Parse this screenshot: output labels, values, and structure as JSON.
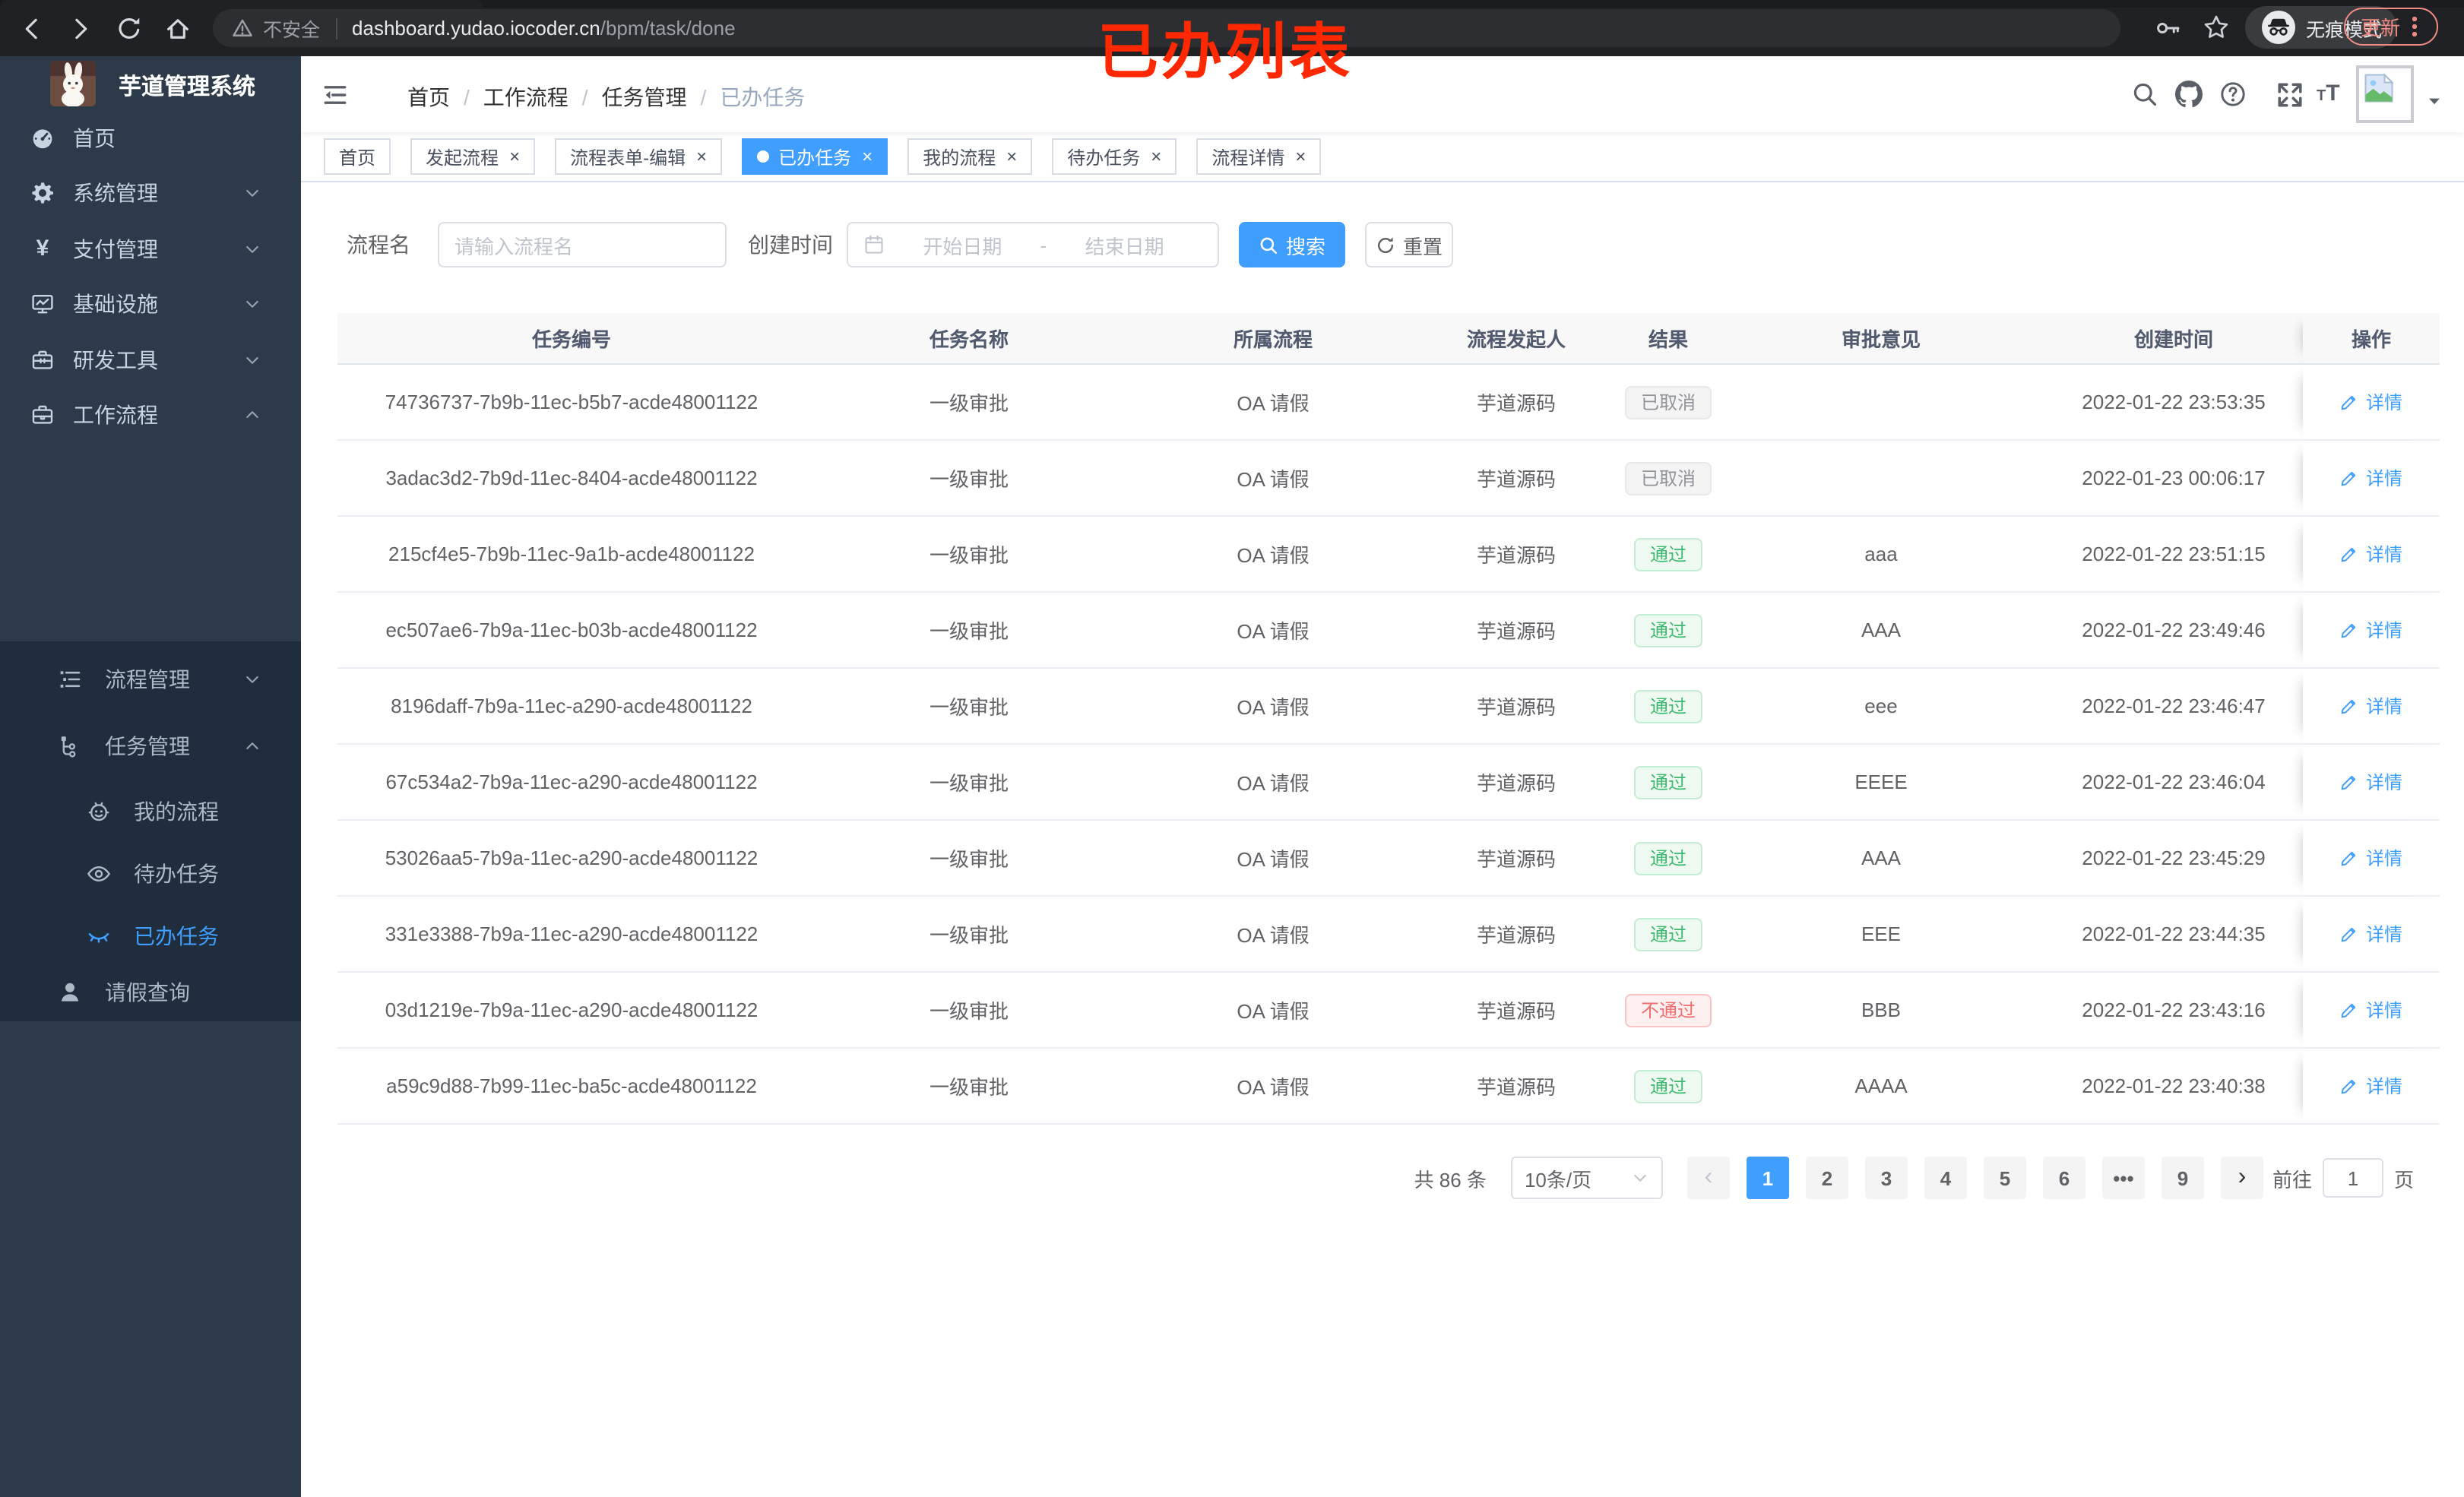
{
  "colors": {
    "accent": "#409eff",
    "annotation": "#ff2800",
    "update": "#f28b82",
    "success": "#3eb96f",
    "danger": "#f56c6c",
    "info": "#909399"
  },
  "annotation": {
    "text": "已办列表"
  },
  "browser": {
    "nav_icons": [
      "back-icon",
      "forward-icon",
      "reload-icon",
      "home-icon"
    ],
    "security_label": "不安全",
    "url_host": "dashboard.yudao.iocoder.cn",
    "url_path": "/bpm/task/done",
    "right_icons": [
      "key-icon",
      "star-icon"
    ],
    "incognito_label": "无痕模式",
    "update_label": "更新"
  },
  "sidebar": {
    "logo_icon": "rabbit-logo",
    "title": "芋道管理系统",
    "menu": [
      {
        "label": "首页",
        "icon": "dashboard-icon",
        "chevron": ""
      },
      {
        "label": "系统管理",
        "icon": "gear-icon",
        "chevron": "down"
      },
      {
        "label": "支付管理",
        "icon": "yen-icon",
        "chevron": "down"
      },
      {
        "label": "基础设施",
        "icon": "monitor-icon",
        "chevron": "down"
      },
      {
        "label": "研发工具",
        "icon": "toolbox-icon",
        "chevron": "down"
      },
      {
        "label": "工作流程",
        "icon": "briefcase-icon",
        "chevron": "up"
      }
    ],
    "submenu": [
      {
        "label": "流程管理",
        "icon": "list-tree-icon",
        "chevron": "down",
        "level": 1,
        "active": false
      },
      {
        "label": "任务管理",
        "icon": "org-icon",
        "chevron": "up",
        "level": 1,
        "active": false
      },
      {
        "label": "我的流程",
        "icon": "robot-icon",
        "chevron": "",
        "level": 2,
        "active": false
      },
      {
        "label": "待办任务",
        "icon": "eye-open-icon",
        "chevron": "",
        "level": 2,
        "active": false
      },
      {
        "label": "已办任务",
        "icon": "eye-closed-icon",
        "chevron": "",
        "level": 2,
        "active": true
      },
      {
        "label": "请假查询",
        "icon": "user-icon",
        "chevron": "",
        "level": 1,
        "active": false
      }
    ]
  },
  "navbar": {
    "breadcrumb": [
      "首页",
      "工作流程",
      "任务管理",
      "已办任务"
    ],
    "icons": [
      "search-icon",
      "github-icon",
      "question-icon",
      "fullscreen-icon",
      "font-size-icon"
    ]
  },
  "tabs": [
    {
      "label": "首页",
      "closable": false,
      "active": false
    },
    {
      "label": "发起流程",
      "closable": true,
      "active": false
    },
    {
      "label": "流程表单-编辑",
      "closable": true,
      "active": false
    },
    {
      "label": "已办任务",
      "closable": true,
      "active": true
    },
    {
      "label": "我的流程",
      "closable": true,
      "active": false
    },
    {
      "label": "待办任务",
      "closable": true,
      "active": false
    },
    {
      "label": "流程详情",
      "closable": true,
      "active": false
    }
  ],
  "filters": {
    "name_label": "流程名",
    "name_placeholder": "请输入流程名",
    "time_label": "创建时间",
    "date_start_placeholder": "开始日期",
    "date_separator": "-",
    "date_end_placeholder": "结束日期",
    "search_label": "搜索",
    "reset_label": "重置"
  },
  "table": {
    "columns": [
      "任务编号",
      "任务名称",
      "所属流程",
      "流程发起人",
      "结果",
      "审批意见",
      "创建时间",
      "操作"
    ],
    "action_label": "详情",
    "rows": [
      {
        "id": "74736737-7b9b-11ec-b5b7-acde48001122",
        "name": "一级审批",
        "process": "OA 请假",
        "starter": "芋道源码",
        "result": "已取消",
        "type": "info",
        "comment": "",
        "time": "2022-01-22 23:53:35"
      },
      {
        "id": "3adac3d2-7b9d-11ec-8404-acde48001122",
        "name": "一级审批",
        "process": "OA 请假",
        "starter": "芋道源码",
        "result": "已取消",
        "type": "info",
        "comment": "",
        "time": "2022-01-23 00:06:17"
      },
      {
        "id": "215cf4e5-7b9b-11ec-9a1b-acde48001122",
        "name": "一级审批",
        "process": "OA 请假",
        "starter": "芋道源码",
        "result": "通过",
        "type": "success",
        "comment": "aaa",
        "time": "2022-01-22 23:51:15"
      },
      {
        "id": "ec507ae6-7b9a-11ec-b03b-acde48001122",
        "name": "一级审批",
        "process": "OA 请假",
        "starter": "芋道源码",
        "result": "通过",
        "type": "success",
        "comment": "AAA",
        "time": "2022-01-22 23:49:46"
      },
      {
        "id": "8196daff-7b9a-11ec-a290-acde48001122",
        "name": "一级审批",
        "process": "OA 请假",
        "starter": "芋道源码",
        "result": "通过",
        "type": "success",
        "comment": "eee",
        "time": "2022-01-22 23:46:47"
      },
      {
        "id": "67c534a2-7b9a-11ec-a290-acde48001122",
        "name": "一级审批",
        "process": "OA 请假",
        "starter": "芋道源码",
        "result": "通过",
        "type": "success",
        "comment": "EEEE",
        "time": "2022-01-22 23:46:04"
      },
      {
        "id": "53026aa5-7b9a-11ec-a290-acde48001122",
        "name": "一级审批",
        "process": "OA 请假",
        "starter": "芋道源码",
        "result": "通过",
        "type": "success",
        "comment": "AAA",
        "time": "2022-01-22 23:45:29"
      },
      {
        "id": "331e3388-7b9a-11ec-a290-acde48001122",
        "name": "一级审批",
        "process": "OA 请假",
        "starter": "芋道源码",
        "result": "通过",
        "type": "success",
        "comment": "EEE",
        "time": "2022-01-22 23:44:35"
      },
      {
        "id": "03d1219e-7b9a-11ec-a290-acde48001122",
        "name": "一级审批",
        "process": "OA 请假",
        "starter": "芋道源码",
        "result": "不通过",
        "type": "danger",
        "comment": "BBB",
        "time": "2022-01-22 23:43:16"
      },
      {
        "id": "a59c9d88-7b99-11ec-ba5c-acde48001122",
        "name": "一级审批",
        "process": "OA 请假",
        "starter": "芋道源码",
        "result": "通过",
        "type": "success",
        "comment": "AAAA",
        "time": "2022-01-22 23:40:38"
      }
    ]
  },
  "pagination": {
    "total": "共 86 条",
    "page_size": "10条/页",
    "prev": "‹",
    "next": "›",
    "pages": [
      {
        "label": "1",
        "active": true
      },
      {
        "label": "2",
        "active": false
      },
      {
        "label": "3",
        "active": false
      },
      {
        "label": "4",
        "active": false
      },
      {
        "label": "5",
        "active": false
      },
      {
        "label": "6",
        "active": false
      },
      {
        "label": "•••",
        "active": false
      },
      {
        "label": "9",
        "active": false
      }
    ],
    "goto_prefix": "前往",
    "goto_value": "1",
    "goto_suffix": "页"
  }
}
